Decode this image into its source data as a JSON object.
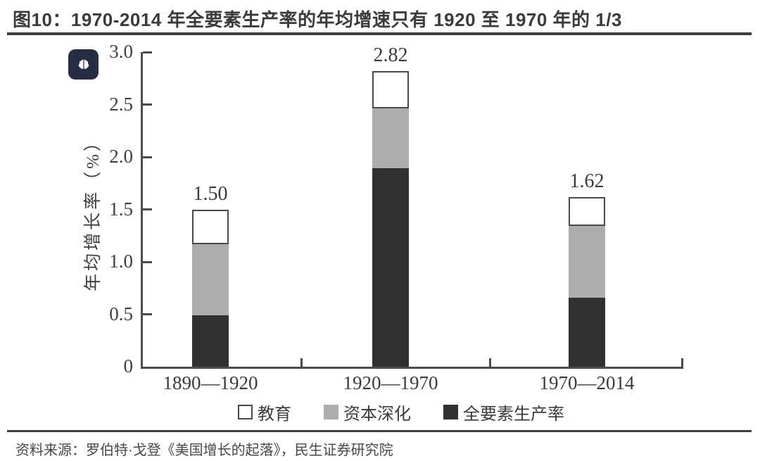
{
  "title": "图10：1970-2014 年全要素生产率的年均增速只有 1920 至 1970 年的 1/3",
  "source": "资料来源：罗伯特·戈登《美国增长的起落》，民生证券研究院",
  "logo": {
    "icon": "brain-logo"
  },
  "colors": {
    "tfp_dark": "#333032",
    "capital_gray": "#aeacac",
    "education_white": "#ffffff",
    "segment_border": "#4a4a4a",
    "axis": "#4c4c4c",
    "rule": "#3e3e3e",
    "logo_bg": "#272d42"
  },
  "chart_data": {
    "type": "bar",
    "stacked": true,
    "title": "",
    "xlabel": "",
    "ylabel": "年均增长率（%）",
    "ylim": [
      0,
      3.0
    ],
    "yticks": [
      0,
      0.5,
      1.0,
      1.5,
      2.0,
      2.5,
      3.0
    ],
    "ytick_labels": [
      "0",
      "0.5",
      "1.0",
      "1.5",
      "2.0",
      "2.5",
      "3.0"
    ],
    "grid": false,
    "legend_position": "bottom",
    "categories": [
      "1890—1920",
      "1920—1970",
      "1970—2014"
    ],
    "series": [
      {
        "name": "全要素生产率",
        "color": "#333032",
        "outlined": false,
        "values": [
          0.49,
          1.89,
          0.66
        ]
      },
      {
        "name": "资本深化",
        "color": "#aeacac",
        "outlined": false,
        "values": [
          0.68,
          0.57,
          0.68
        ]
      },
      {
        "name": "教育",
        "color": "#ffffff",
        "outlined": true,
        "values": [
          0.33,
          0.36,
          0.28
        ]
      }
    ],
    "totals": [
      "1.50",
      "2.82",
      "1.62"
    ],
    "legend": [
      {
        "label": "教育",
        "fill": "#ffffff",
        "border": "#4a4a4a"
      },
      {
        "label": "资本深化",
        "fill": "#aeacac",
        "border": "#aeacac"
      },
      {
        "label": "全要素生产率",
        "fill": "#333032",
        "border": "#333032"
      }
    ]
  }
}
